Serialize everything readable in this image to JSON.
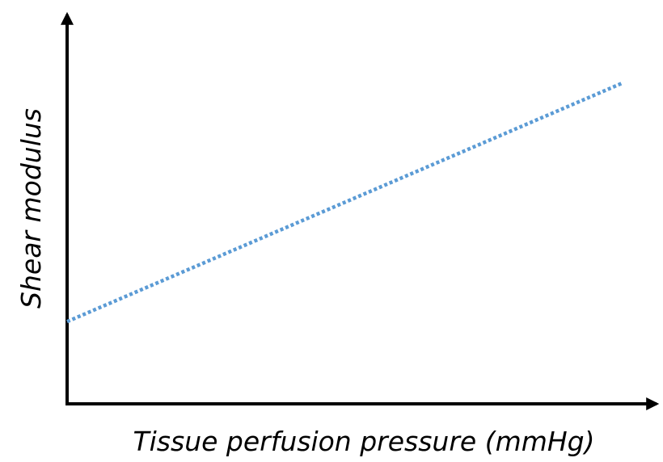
{
  "chart_data": {
    "type": "line",
    "xlabel": "Tissue perfusion pressure (mmHg)",
    "ylabel": "Shear modulus",
    "x": [
      0,
      94
    ],
    "series": [
      {
        "color": "#5b9bd5",
        "values": [
          21,
          82
        ]
      }
    ],
    "xlim": [
      0,
      100
    ],
    "ylim": [
      0,
      100
    ]
  }
}
